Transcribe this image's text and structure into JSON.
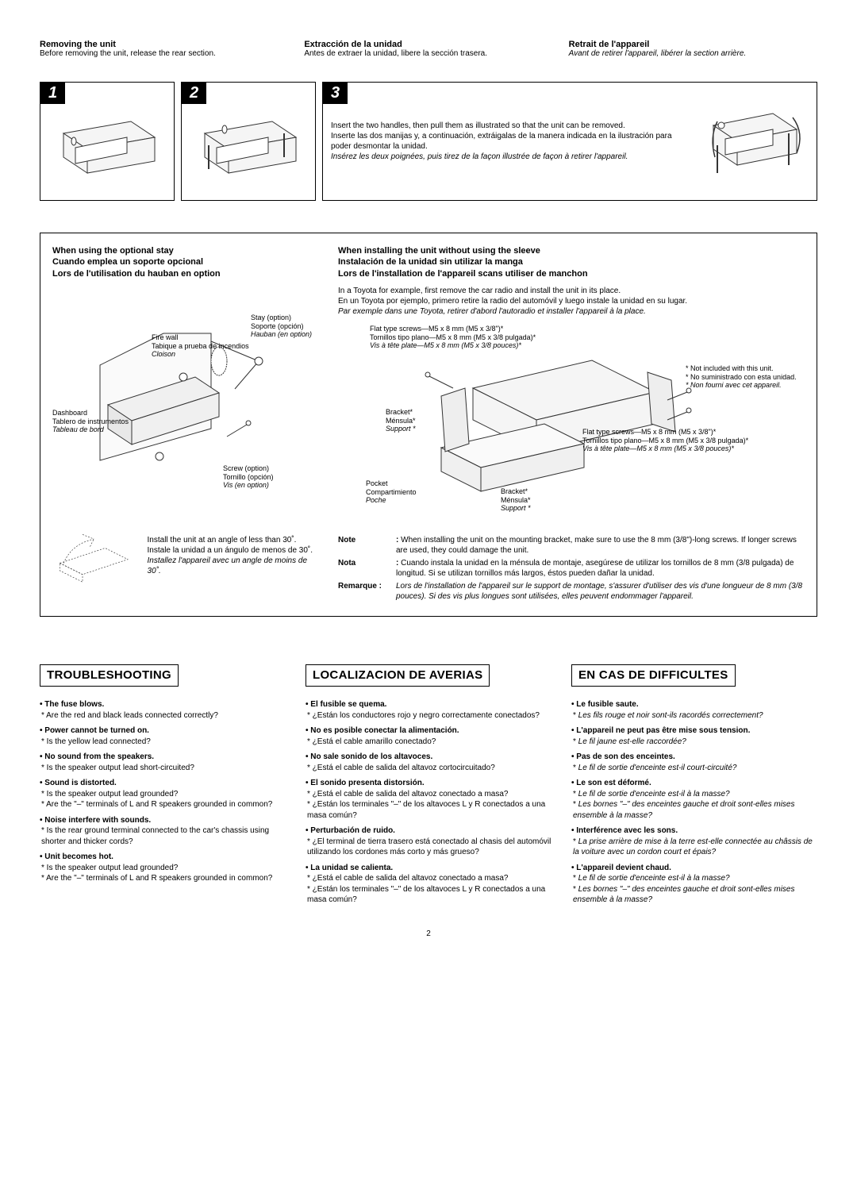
{
  "header": {
    "en": {
      "title": "Removing the unit",
      "sub": "Before removing the unit, release the rear section."
    },
    "es": {
      "title": "Extracción de la unidad",
      "sub": "Antes de extraer la unidad, libere la sección trasera."
    },
    "fr": {
      "title": "Retrait de l'appareil",
      "sub": "Avant de retirer l'appareil, libérer la section arrière."
    }
  },
  "steps": {
    "n1": "1",
    "n2": "2",
    "n3": "3",
    "s3_en": "Insert the two handles, then pull them as illustrated so that the unit can be removed.",
    "s3_es": "Inserte las dos manijas y, a continuación, extráigalas de la manera indicada en la ilustración para poder desmontar la unidad.",
    "s3_fr": "Insérez les deux poignées, puis tirez de la façon illustrée de façon à retirer l'appareil."
  },
  "install_left": {
    "t_en": "When using the optional stay",
    "t_es": "Cuando emplea un soporte opcional",
    "t_fr": "Lors de l'utilisation du hauban en option",
    "stay_en": "Stay (option)",
    "stay_es": "Soporte (opción)",
    "stay_fr": "Hauban (en option)",
    "fire_en": "Fire wall",
    "fire_es": "Tabique a prueba de incendios",
    "fire_fr": "Cloison",
    "dash_en": "Dashboard",
    "dash_es": "Tablero de instrumentos",
    "dash_fr": "Tableau de bord",
    "screw_en": "Screw (option)",
    "screw_es": "Tornillo (opción)",
    "screw_fr": "Vis (en option)",
    "angle_en": "Install the unit at an angle of less than 30˚.",
    "angle_es": "Instale la unidad a un ángulo de menos de 30˚.",
    "angle_fr": "Installez l'appareil avec un angle de moins de 30˚."
  },
  "install_right": {
    "t_en": "When installing the unit without using the sleeve",
    "t_es": "Instalación de la unidad sin utilizar la manga",
    "t_fr": "Lors de l'installation de l'appareil scans utiliser de manchon",
    "sub_en": "In a Toyota for example, first remove the car radio and install the unit in its place.",
    "sub_es": "En un Toyota por ejemplo, primero retire la radio del automóvil y luego instale la unidad en su lugar.",
    "sub_fr": "Par exemple dans une Toyota, retirer d'abord l'autoradio et installer l'appareil à la place.",
    "flat_en": "Flat type screws—M5 x 8 mm (M5 x 3/8\")*",
    "flat_es": "Tornillos tipo plano—M5 x 8 mm (M5 x 3/8 pulgada)*",
    "flat_fr": "Vis à tête plate—M5 x 8 mm (M5 x 3/8 pouces)*",
    "bracket_en": "Bracket*",
    "bracket_es": "Ménsula*",
    "bracket_fr": "Support *",
    "pocket_en": "Pocket",
    "pocket_es": "Compartimiento",
    "pocket_fr": "Poche",
    "not_en": "* Not included with this unit.",
    "not_es": "* No suministrado con esta unidad.",
    "not_fr": "* Non fourni avec cet appareil.",
    "note_lbl": "Note",
    "nota_lbl": "Nota",
    "remarque_lbl": "Remarque :",
    "note_en": "When installing the unit on the mounting bracket, make sure to use the 8 mm (3/8\")-long screws. If longer screws are used, they could damage the unit.",
    "note_es": "Cuando instala la unidad en la ménsula de montaje, asegúrese de utilizar los tornillos de 8 mm (3/8 pulgada) de longitud. Si se utilizan tornillos más largos, éstos pueden dañar la unidad.",
    "note_fr": "Lors de l'installation de l'appareil sur le support de montage, s'assurer d'utiliser des vis d'une longueur de 8 mm (3/8 pouces). Si des vis plus longues sont utilisées, elles peuvent endommager l'appareil."
  },
  "trouble": {
    "en": {
      "title": "TROUBLESHOOTING",
      "items": [
        {
          "q": "The fuse blows.",
          "a": [
            "Are the red and black leads connected correctly?"
          ]
        },
        {
          "q": "Power cannot be turned on.",
          "a": [
            "Is the yellow lead connected?"
          ]
        },
        {
          "q": "No sound from the speakers.",
          "a": [
            "Is the speaker output lead short-circuited?"
          ]
        },
        {
          "q": "Sound is distorted.",
          "a": [
            "Is the speaker output lead grounded?",
            "Are the \"–\" terminals of L and R speakers grounded in common?"
          ]
        },
        {
          "q": "Noise interfere with sounds.",
          "a": [
            "Is the rear ground terminal connected to the car's chassis using shorter and thicker cords?"
          ]
        },
        {
          "q": "Unit becomes hot.",
          "a": [
            "Is the speaker output lead grounded?",
            "Are the \"–\" terminals of L and R speakers grounded in common?"
          ]
        }
      ]
    },
    "es": {
      "title": "LOCALIZACION DE AVERIAS",
      "items": [
        {
          "q": "El fusible se quema.",
          "a": [
            "¿Están los conductores rojo y negro correctamente conectados?"
          ]
        },
        {
          "q": "No es posible conectar la alimentación.",
          "a": [
            "¿Está el cable amarillo conectado?"
          ]
        },
        {
          "q": "No sale sonido de los altavoces.",
          "a": [
            "¿Está el cable de salida del altavoz cortocircuitado?"
          ]
        },
        {
          "q": "El sonido presenta distorsión.",
          "a": [
            "¿Está el cable de salida del altavoz conectado a masa?",
            "¿Están los terminales \"–\" de los altavoces L y R conectados a una masa común?"
          ]
        },
        {
          "q": "Perturbación de ruido.",
          "a": [
            "¿El terminal de tierra trasero está conectado al chasis del automóvil utilizando los cordones más corto y más grueso?"
          ]
        },
        {
          "q": "La unidad se calienta.",
          "a": [
            "¿Está el cable de salida del altavoz conectado a masa?",
            "¿Están los terminales \"–\" de los altavoces L y R conectados a una masa común?"
          ]
        }
      ]
    },
    "fr": {
      "title": "EN CAS DE DIFFICULTES",
      "items": [
        {
          "q": "Le fusible saute.",
          "a": [
            "Les fils rouge et noir sont-ils racordés correctement?"
          ]
        },
        {
          "q": "L'appareil ne peut pas être mise sous tension.",
          "a": [
            "Le fil jaune est-elle raccordée?"
          ]
        },
        {
          "q": "Pas de son des enceintes.",
          "a": [
            "Le fil de sortie d'enceinte est-il court-circuité?"
          ]
        },
        {
          "q": "Le son est déformé.",
          "a": [
            "Le fil de sortie d'enceinte est-il à la masse?",
            "Les bornes \"–\" des enceintes gauche et droit sont-elles mises ensemble à la masse?"
          ]
        },
        {
          "q": "Interférence avec les sons.",
          "a": [
            "La prise arrière de mise à la terre est-elle connectée au châssis de la voiture avec un cordon court et épais?"
          ]
        },
        {
          "q": "L'appareil devient chaud.",
          "a": [
            "Le fil de sortie d'enceinte est-il à la masse?",
            "Les bornes \"–\" des enceintes gauche et droit sont-elles mises ensemble à la masse?"
          ]
        }
      ]
    }
  },
  "page": "2",
  "colors": {
    "ink": "#000000",
    "paper": "#ffffff",
    "stroke": "#333333",
    "fill": "#f5f5f5"
  }
}
